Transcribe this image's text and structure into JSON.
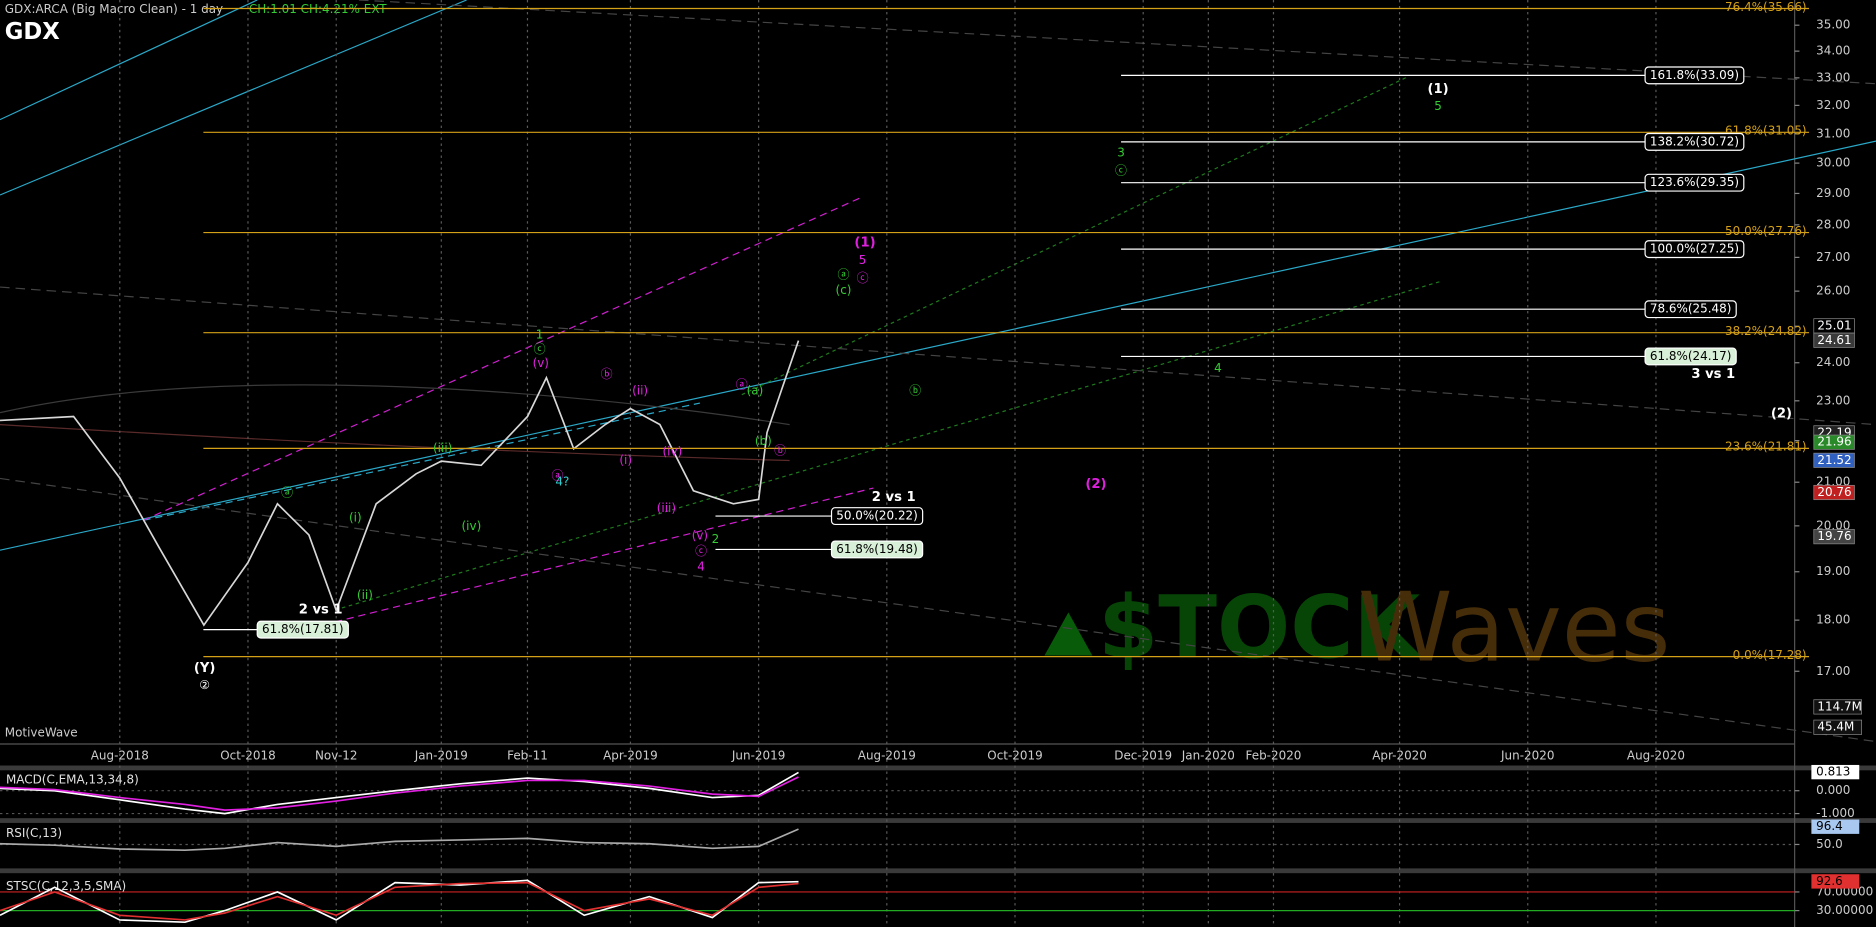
{
  "header": {
    "symbol": "GDX",
    "brand": "MotiveWave"
  },
  "watermark": {
    "left": "$TOCK",
    "right": "Waves"
  },
  "chart_data": [
    {
      "type": "line",
      "title": "GDX:ARCA (Big Macro Clean) - 1 day",
      "subtitle": "CH:1.01 CH:4.21% EXT",
      "log_scale": true,
      "grid": "x",
      "xlim": [
        "2018-06-05",
        "2020-10-06"
      ],
      "xticks": [
        {
          "value": "2018-08",
          "label": "Aug-2018"
        },
        {
          "value": "2018-10",
          "label": "Oct-2018"
        },
        {
          "value": "2018-11-12",
          "label": "Nov-12"
        },
        {
          "value": "2019-01",
          "label": "Jan-2019"
        },
        {
          "value": "2019-02-11",
          "label": "Feb-11"
        },
        {
          "value": "2019-04",
          "label": "Apr-2019"
        },
        {
          "value": "2019-06",
          "label": "Jun-2019"
        },
        {
          "value": "2019-08",
          "label": "Aug-2019"
        },
        {
          "value": "2019-10",
          "label": "Oct-2019"
        },
        {
          "value": "2019-12",
          "label": "Dec-2019"
        },
        {
          "value": "2020-01",
          "label": "Jan-2020"
        },
        {
          "value": "2020-02",
          "label": "Feb-2020"
        },
        {
          "value": "2020-04",
          "label": "Apr-2020"
        },
        {
          "value": "2020-06",
          "label": "Jun-2020"
        },
        {
          "value": "2020-08",
          "label": "Aug-2020"
        }
      ],
      "ylim": [
        15.82,
        36.0
      ],
      "yticks": [
        {
          "value": 17,
          "label": "17.00"
        },
        {
          "value": 18,
          "label": "18.00"
        },
        {
          "value": 19,
          "label": "19.00"
        },
        {
          "value": 20,
          "label": "20.00"
        },
        {
          "value": 21,
          "label": "21.00"
        },
        {
          "value": 22,
          "label": "22.00"
        },
        {
          "value": 23,
          "label": "23.00"
        },
        {
          "value": 24,
          "label": "24.00"
        },
        {
          "value": 25,
          "label": "25.00"
        },
        {
          "value": 26,
          "label": "26.00"
        },
        {
          "value": 27,
          "label": "27.00"
        },
        {
          "value": 28,
          "label": "28.00"
        },
        {
          "value": 29,
          "label": "29.00"
        },
        {
          "value": 30,
          "label": "30.00"
        },
        {
          "value": 31,
          "label": "31.00"
        },
        {
          "value": 32,
          "label": "32.00"
        },
        {
          "value": 33,
          "label": "33.00"
        },
        {
          "value": 34,
          "label": "34.00"
        },
        {
          "value": 35,
          "label": "35.00"
        }
      ],
      "x": [
        "2018-06-05",
        "2018-07-10",
        "2018-08-01",
        "2018-08-20",
        "2018-09-10",
        "2018-10-01",
        "2018-10-15",
        "2018-10-30",
        "2018-11-12",
        "2018-12-01",
        "2018-12-20",
        "2019-01-01",
        "2019-01-20",
        "2019-02-11",
        "2019-02-20",
        "2019-03-05",
        "2019-03-20",
        "2019-04-01",
        "2019-04-15",
        "2019-05-01",
        "2019-05-20",
        "2019-06-01",
        "2019-06-05",
        "2019-06-12",
        "2019-06-20"
      ],
      "series": [
        {
          "color": "#d8d8d8",
          "values": [
            22.5,
            22.6,
            21.1,
            19.5,
            17.9,
            19.2,
            20.5,
            19.8,
            18.2,
            20.5,
            21.2,
            21.5,
            21.4,
            22.6,
            23.6,
            21.8,
            22.4,
            22.8,
            22.4,
            20.8,
            20.5,
            20.6,
            22.2,
            23.3,
            24.6
          ]
        }
      ],
      "fib_levels": [
        {
          "value": 35.66,
          "label": "76.4%(35.66)"
        },
        {
          "value": 31.05,
          "label": "61.8%(31.05)"
        },
        {
          "value": 27.76,
          "label": "50.0%(27.76)"
        },
        {
          "value": 24.82,
          "label": "38.2%(24.82)"
        },
        {
          "value": 21.81,
          "label": "23.6%(21.81)"
        },
        {
          "value": 17.28,
          "label": "0.0%(17.28)"
        }
      ],
      "fib_color": "#d4a017",
      "projection_levels": [
        {
          "value": 33.09,
          "label": "161.8%(33.09)"
        },
        {
          "value": 30.72,
          "label": "138.2%(30.72)"
        },
        {
          "value": 29.35,
          "label": "123.6%(29.35)"
        },
        {
          "value": 27.25,
          "label": "100.0%(27.25)"
        },
        {
          "value": 25.48,
          "label": "78.6%(25.48)"
        },
        {
          "value": 24.17,
          "label": "61.8%(24.17)"
        },
        {
          "value": 20.22,
          "label": "50.0%(20.22)"
        },
        {
          "value": 19.48,
          "label": "61.8%(19.48)"
        },
        {
          "value": 17.81,
          "label": "61.8%(17.81)"
        }
      ],
      "price_tags": [
        {
          "value": 25.01,
          "color": "#000000"
        },
        {
          "value": 24.61,
          "color": "#3a3a3a"
        },
        {
          "value": 22.19,
          "color": "#222222"
        },
        {
          "value": 21.96,
          "color": "#2a8a2a"
        },
        {
          "value": 21.52,
          "color": "#3060c0"
        },
        {
          "value": 20.76,
          "color": "#c02020"
        },
        {
          "value": 19.76,
          "color": "#444444"
        }
      ],
      "volume_labels": [
        "114.7M",
        "45.4M"
      ],
      "annotations": [
        {
          "text": "(1)",
          "color": "#ffffff"
        },
        {
          "text": "5",
          "color": "#33cc33"
        },
        {
          "text": "3",
          "color": "#33cc33"
        },
        {
          "text": "ⓒ",
          "color": "#33cc33"
        },
        {
          "text": "(1)",
          "color": "#e020e0"
        },
        {
          "text": "5",
          "color": "#e020e0"
        },
        {
          "text": "ⓒ",
          "color": "#e020e0"
        },
        {
          "text": "ⓐ",
          "color": "#33cc33"
        },
        {
          "text": "(c)",
          "color": "#33cc33"
        },
        {
          "text": "ⓑ",
          "color": "#33cc33"
        },
        {
          "text": "4",
          "color": "#33cc33"
        },
        {
          "text": "3 vs 1",
          "color": "#ffffff"
        },
        {
          "text": "(2)",
          "color": "#ffffff"
        },
        {
          "text": "(2)",
          "color": "#e020e0"
        },
        {
          "text": "2 vs 1",
          "color": "#ffffff"
        },
        {
          "text": "2 vs 1",
          "color": "#ffffff"
        },
        {
          "text": "(Y)",
          "color": "#ffffff"
        },
        {
          "text": "②",
          "color": "#ffffff"
        },
        {
          "text": "1",
          "color": "#33cc33"
        },
        {
          "text": "ⓒ",
          "color": "#33cc33"
        },
        {
          "text": "(v)",
          "color": "#e020e0"
        },
        {
          "text": "ⓐ",
          "color": "#33cc33"
        },
        {
          "text": "ⓑ",
          "color": "#e020e0"
        },
        {
          "text": "(ii)",
          "color": "#e020e0"
        },
        {
          "text": "(i)",
          "color": "#e020e0"
        },
        {
          "text": "(iii)",
          "color": "#33cc33"
        },
        {
          "text": "(iv)",
          "color": "#33cc33"
        },
        {
          "text": "(i)",
          "color": "#33cc33"
        },
        {
          "text": "(ii)",
          "color": "#33cc33"
        },
        {
          "text": "(iv)",
          "color": "#e020e0"
        },
        {
          "text": "(iii)",
          "color": "#e020e0"
        },
        {
          "text": "(v)",
          "color": "#e020e0"
        },
        {
          "text": "ⓒ",
          "color": "#e020e0"
        },
        {
          "text": "4",
          "color": "#e020e0"
        },
        {
          "text": "2",
          "color": "#33cc33"
        },
        {
          "text": "ⓐ",
          "color": "#e020e0"
        },
        {
          "text": "(a)",
          "color": "#33cc33"
        },
        {
          "text": "(b)",
          "color": "#33cc33"
        },
        {
          "text": "ⓑ",
          "color": "#e020e0"
        },
        {
          "text": "ⓐ",
          "color": "#e020e0"
        },
        {
          "text": "4?",
          "color": "#33cccc"
        }
      ]
    },
    {
      "type": "line",
      "title": "MACD(C,EMA,13,34,8)",
      "x": [
        "2018-06-05",
        "2018-07-01",
        "2018-08-01",
        "2018-09-01",
        "2018-09-20",
        "2018-10-15",
        "2018-11-12",
        "2018-12-10",
        "2019-01-10",
        "2019-02-11",
        "2019-03-10",
        "2019-04-10",
        "2019-05-10",
        "2019-06-01",
        "2019-06-20"
      ],
      "series": [
        {
          "color": "#ffffff",
          "values": [
            0.1,
            0.0,
            -0.4,
            -0.8,
            -1.0,
            -0.6,
            -0.3,
            0.0,
            0.3,
            0.55,
            0.4,
            0.1,
            -0.3,
            -0.2,
            0.8
          ]
        },
        {
          "color": "#e020e0",
          "values": [
            0.15,
            0.05,
            -0.3,
            -0.6,
            -0.85,
            -0.75,
            -0.45,
            -0.1,
            0.2,
            0.45,
            0.45,
            0.2,
            -0.15,
            -0.25,
            0.6
          ]
        }
      ],
      "ylim": [
        -1.2,
        0.84
      ],
      "yticks": [
        {
          "value": 0,
          "label": "0.000"
        },
        {
          "value": -1,
          "label": "-1.000"
        }
      ],
      "last_value": 0.813,
      "last_color": "#ffffff"
    },
    {
      "type": "line",
      "title": "RSI(C,13)",
      "x": [
        "2018-06-05",
        "2018-07-01",
        "2018-08-01",
        "2018-09-01",
        "2018-09-20",
        "2018-10-15",
        "2018-11-12",
        "2018-12-10",
        "2019-01-10",
        "2019-02-11",
        "2019-03-10",
        "2019-04-10",
        "2019-05-10",
        "2019-06-01",
        "2019-06-20"
      ],
      "series": [
        {
          "color": "#aaaaaa",
          "values": [
            52,
            48,
            38,
            35,
            40,
            55,
            45,
            58,
            62,
            66,
            55,
            52,
            40,
            45,
            90
          ]
        }
      ],
      "ylim": [
        0,
        100
      ],
      "yticks": [
        {
          "value": 50,
          "label": "50.0"
        }
      ],
      "last_value": 96.4,
      "last_color": "#a8c8f0"
    },
    {
      "type": "line",
      "title": "STSC(C,12,3,5,SMA)",
      "x": [
        "2018-06-05",
        "2018-07-01",
        "2018-08-01",
        "2018-09-01",
        "2018-09-20",
        "2018-10-15",
        "2018-11-12",
        "2018-12-10",
        "2019-01-10",
        "2019-02-11",
        "2019-03-10",
        "2019-04-10",
        "2019-05-10",
        "2019-06-01",
        "2019-06-20"
      ],
      "series": [
        {
          "color": "#ffffff",
          "values": [
            20,
            80,
            10,
            5,
            30,
            70,
            10,
            90,
            85,
            95,
            20,
            60,
            15,
            90,
            92
          ]
        },
        {
          "color": "#e03030",
          "values": [
            30,
            70,
            20,
            10,
            25,
            60,
            20,
            80,
            88,
            90,
            30,
            55,
            20,
            80,
            88
          ]
        }
      ],
      "ylim": [
        0,
        100
      ],
      "yticks": [
        {
          "value": 70,
          "label": "70.00000"
        },
        {
          "value": 30,
          "label": "30.00000"
        }
      ],
      "level_colors": [
        "#cc2222",
        "#22aa22"
      ],
      "last_value": 92.6,
      "last_color": "#e03030"
    }
  ]
}
